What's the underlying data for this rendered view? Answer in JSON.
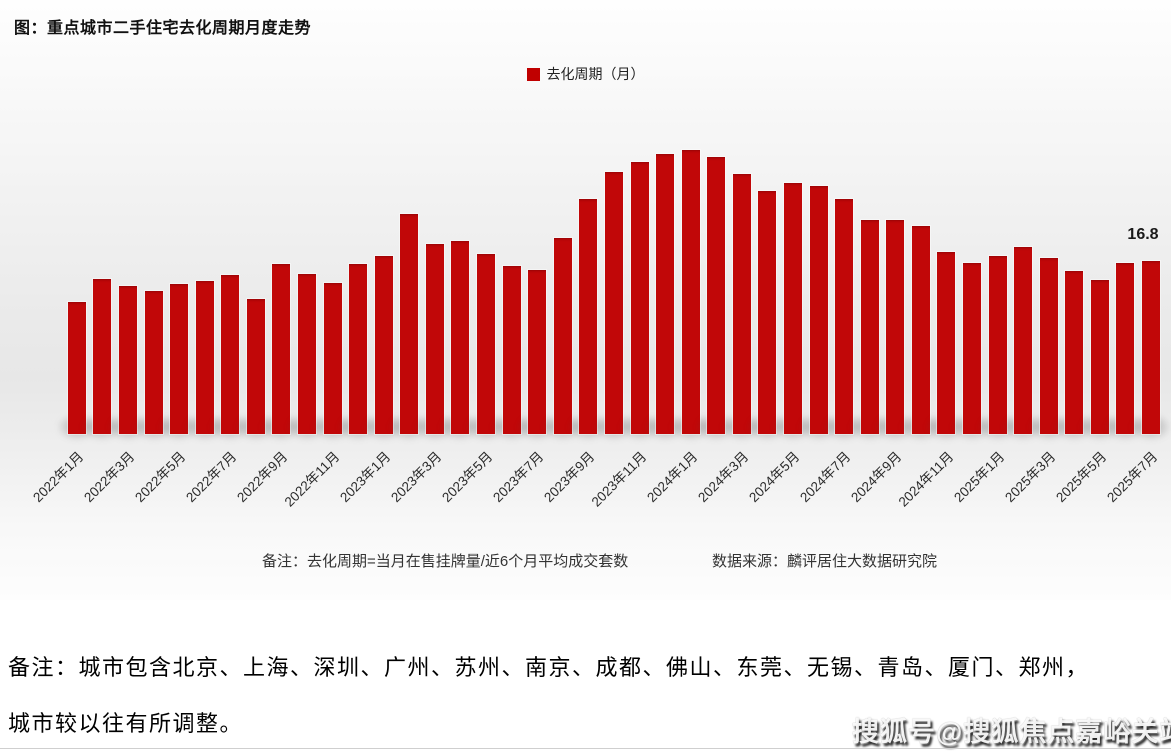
{
  "header": {
    "title": "图：重点城市二手住宅去化周期月度走势"
  },
  "legend": {
    "label": "去化周期（月）",
    "swatch_color": "#c00000"
  },
  "chart_data": {
    "type": "bar",
    "title": "图：重点城市二手住宅去化周期月度走势",
    "legend": [
      "去化周期（月）"
    ],
    "ylabel": "去化周期（月）",
    "xlabel": "",
    "ylim": [
      0,
      30
    ],
    "grid": false,
    "legend_position": "top-center",
    "bar_color": "#c10708",
    "x": [
      "2022年1月",
      "2022年2月",
      "2022年3月",
      "2022年4月",
      "2022年5月",
      "2022年6月",
      "2022年7月",
      "2022年8月",
      "2022年9月",
      "2022年10月",
      "2022年11月",
      "2022年12月",
      "2023年1月",
      "2023年2月",
      "2023年3月",
      "2023年4月",
      "2023年5月",
      "2023年6月",
      "2023年7月",
      "2023年8月",
      "2023年9月",
      "2023年10月",
      "2023年11月",
      "2023年12月",
      "2024年1月",
      "2024年2月",
      "2024年3月",
      "2024年4月",
      "2024年5月",
      "2024年6月",
      "2024年7月",
      "2024年8月",
      "2024年9月",
      "2024年10月",
      "2024年11月",
      "2024年12月",
      "2025年1月",
      "2025年2月",
      "2025年3月",
      "2025年4月",
      "2025年5月",
      "2025年6月",
      "2025年7月"
    ],
    "values": [
      12.8,
      15.0,
      14.3,
      13.8,
      14.5,
      14.8,
      15.4,
      13.1,
      16.5,
      15.5,
      14.6,
      16.5,
      17.2,
      21.3,
      18.4,
      18.7,
      17.4,
      16.3,
      15.9,
      19.0,
      22.8,
      25.4,
      26.3,
      27.1,
      27.5,
      26.8,
      25.2,
      23.5,
      24.3,
      24.0,
      22.8,
      20.7,
      20.7,
      20.1,
      17.6,
      16.6,
      17.2,
      18.1,
      17.0,
      15.8,
      14.9,
      16.6,
      16.8
    ],
    "tick_labels": [
      "2022年1月",
      "2022年3月",
      "2022年5月",
      "2022年7月",
      "2022年9月",
      "2022年11月",
      "2023年1月",
      "2023年3月",
      "2023年5月",
      "2023年7月",
      "2023年9月",
      "2023年11月",
      "2024年1月",
      "2024年3月",
      "2024年5月",
      "2024年7月",
      "2024年9月",
      "2024年11月",
      "2025年1月",
      "2025年3月",
      "2025年5月",
      "2025年7月"
    ],
    "last_value_label": "16.8"
  },
  "fig_footnote": {
    "note": "备注：去化周期=当月在售挂牌量/近6个月平均成交套数",
    "source": "数据来源：麟评居住大数据研究院"
  },
  "bottom_note": {
    "line1": "备注：城市包含北京、上海、深圳、广州、苏州、南京、成都、佛山、东莞、无锡、青岛、厦门、郑州，",
    "line2": "城市较以往有所调整。"
  },
  "watermark": {
    "text": "搜狐号@搜狐焦点嘉峪关站"
  }
}
